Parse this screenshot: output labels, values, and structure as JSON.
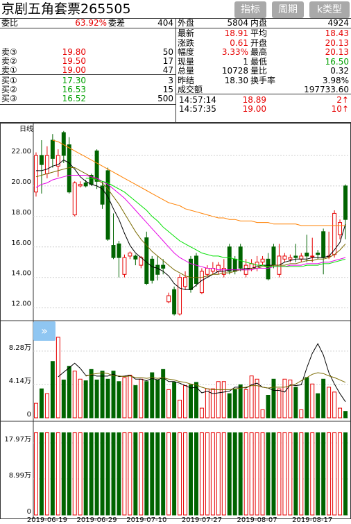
{
  "header": {
    "title": "京剧五角套票265505",
    "buttons": [
      "指标",
      "周期",
      "k类型"
    ]
  },
  "quote_left": {
    "weibi_label": "委比",
    "weibi_value": "63.92%",
    "weicha_label": "委差",
    "weicha_value": "404",
    "asks": [
      {
        "label": "卖③",
        "price": "19.80",
        "vol": "50"
      },
      {
        "label": "卖②",
        "price": "19.50",
        "vol": "17"
      },
      {
        "label": "卖①",
        "price": "19.00",
        "vol": "47"
      }
    ],
    "bids": [
      {
        "label": "买①",
        "price": "17.30",
        "vol": "3"
      },
      {
        "label": "买②",
        "price": "16.53",
        "vol": "15"
      },
      {
        "label": "买③",
        "price": "16.52",
        "vol": "500"
      }
    ]
  },
  "quote_right": {
    "waipan_label": "外盘",
    "waipan_value": "5804",
    "neipan_label": "内盘",
    "neipan_value": "4924",
    "rows": [
      {
        "l1": "最新",
        "v1": "18.91",
        "c1": "red",
        "l2": "平均",
        "v2": "18.43",
        "c2": "red"
      },
      {
        "l1": "涨跌",
        "v1": "0.61",
        "c1": "red",
        "l2": "开盘",
        "v2": "20.13",
        "c2": "red"
      },
      {
        "l1": "幅度",
        "v1": "3.33%",
        "c1": "red",
        "l2": "最高",
        "v2": "20.13",
        "c2": "red"
      },
      {
        "l1": "现量",
        "v1": "1",
        "c1": "black",
        "l2": "最低",
        "v2": "16.50",
        "c2": "grn"
      },
      {
        "l1": "总量",
        "v1": "10728",
        "c1": "black",
        "l2": "量比",
        "v2": "0.32",
        "c2": "black"
      },
      {
        "l1": "昨结",
        "v1": "18.30",
        "c1": "black",
        "l2": "换手率",
        "v2": "3.98%",
        "c2": "black"
      }
    ],
    "amount_label": "成交额",
    "amount_value": "197733.60",
    "ticks": [
      {
        "time": "14:57:14",
        "price": "18.89",
        "vol": "2↑"
      },
      {
        "time": "14:57:35",
        "price": "19.00",
        "vol": "10↑"
      }
    ]
  },
  "kline": {
    "period_label": "日线",
    "price_ticks": [
      "22.00",
      "20.00",
      "18.00",
      "16.00",
      "14.00",
      "12.00"
    ],
    "vol_ticks": [
      "8.28万",
      "4.14万",
      "0"
    ],
    "oi_ticks": [
      "17.97万",
      "8.99万",
      "0"
    ],
    "dates": [
      "2019-06-19",
      "2019-06-29",
      "2019-07-10",
      "2019-07-27",
      "2019-08-07",
      "2019-08-17"
    ],
    "colors": {
      "up": "#e60000",
      "down": "#006400",
      "ma5": "#000000",
      "ma10": "#7a6a00",
      "ma20": "#e600e6",
      "ma30": "#00e000",
      "ma60": "#ff8000"
    }
  },
  "chart_data": {
    "type": "candlestick",
    "price_ylim": [
      11.3,
      23.5
    ],
    "candles": [
      {
        "o": 19.6,
        "c": 22.0,
        "h": 22.2,
        "l": 19.3
      },
      {
        "o": 22.0,
        "c": 21.4,
        "h": 23.0,
        "l": 19.5
      },
      {
        "o": 20.8,
        "c": 22.0,
        "h": 22.6,
        "l": 20.5
      },
      {
        "o": 23.0,
        "c": 21.8,
        "h": 23.4,
        "l": 21.2
      },
      {
        "o": 21.3,
        "c": 22.0,
        "h": 22.4,
        "l": 20.6
      },
      {
        "o": 23.5,
        "c": 22.0,
        "h": 23.6,
        "l": 21.5
      },
      {
        "o": 22.7,
        "c": 19.6,
        "h": 23.2,
        "l": 19.5
      },
      {
        "o": 18.1,
        "c": 20.2,
        "h": 20.3,
        "l": 18.0
      },
      {
        "o": 20.0,
        "c": 20.1,
        "h": 20.3,
        "l": 19.9
      },
      {
        "o": 20.2,
        "c": 20.0,
        "h": 20.4,
        "l": 19.9
      },
      {
        "o": 20.7,
        "c": 20.1,
        "h": 20.8,
        "l": 20.0
      },
      {
        "o": 22.3,
        "c": 20.3,
        "h": 22.4,
        "l": 19.8
      },
      {
        "o": 20.0,
        "c": 18.8,
        "h": 20.3,
        "l": 18.5
      },
      {
        "o": 21.0,
        "c": 16.5,
        "h": 21.2,
        "l": 16.4
      },
      {
        "o": 16.1,
        "c": 15.3,
        "h": 18.2,
        "l": 15.2
      },
      {
        "o": 16.2,
        "c": 15.3,
        "h": 16.4,
        "l": 14.0
      },
      {
        "o": 14.2,
        "c": 15.3,
        "h": 15.5,
        "l": 14.0
      },
      {
        "o": 15.4,
        "c": 15.6,
        "h": 15.7,
        "l": 15.2
      },
      {
        "o": 15.4,
        "c": 15.2,
        "h": 15.5,
        "l": 14.8
      },
      {
        "o": 14.8,
        "c": 15.3,
        "h": 15.4,
        "l": 14.6
      },
      {
        "o": 16.6,
        "c": 13.6,
        "h": 17.0,
        "l": 13.5
      },
      {
        "o": 15.2,
        "c": 13.8,
        "h": 15.4,
        "l": 13.6
      },
      {
        "o": 14.8,
        "c": 14.2,
        "h": 15.4,
        "l": 13.8
      },
      {
        "o": 14.8,
        "c": 14.6,
        "h": 15.2,
        "l": 14.2
      },
      {
        "o": 12.4,
        "c": 12.8,
        "h": 13.0,
        "l": 12.3
      },
      {
        "o": 13.2,
        "c": 11.6,
        "h": 13.4,
        "l": 11.5
      },
      {
        "o": 11.6,
        "c": 14.0,
        "h": 14.2,
        "l": 11.5
      },
      {
        "o": 13.4,
        "c": 14.0,
        "h": 14.4,
        "l": 13.2
      },
      {
        "o": 15.2,
        "c": 13.2,
        "h": 15.4,
        "l": 13.0
      },
      {
        "o": 15.4,
        "c": 13.6,
        "h": 15.6,
        "l": 13.4
      },
      {
        "o": 13.0,
        "c": 14.4,
        "h": 14.6,
        "l": 12.9
      },
      {
        "o": 14.2,
        "c": 14.6,
        "h": 14.8,
        "l": 14.0
      },
      {
        "o": 14.4,
        "c": 14.6,
        "h": 15.0,
        "l": 14.2
      },
      {
        "o": 14.4,
        "c": 14.8,
        "h": 15.0,
        "l": 14.2
      },
      {
        "o": 14.2,
        "c": 14.6,
        "h": 15.2,
        "l": 14.0
      },
      {
        "o": 16.0,
        "c": 14.4,
        "h": 16.2,
        "l": 14.2
      },
      {
        "o": 15.2,
        "c": 14.4,
        "h": 15.4,
        "l": 14.2
      },
      {
        "o": 16.0,
        "c": 14.6,
        "h": 16.2,
        "l": 14.4
      },
      {
        "o": 14.2,
        "c": 14.8,
        "h": 15.2,
        "l": 14.0
      },
      {
        "o": 14.6,
        "c": 14.9,
        "h": 15.2,
        "l": 14.4
      },
      {
        "o": 14.6,
        "c": 15.0,
        "h": 15.4,
        "l": 14.4
      },
      {
        "o": 15.0,
        "c": 15.2,
        "h": 15.4,
        "l": 14.8
      },
      {
        "o": 15.2,
        "c": 13.9,
        "h": 15.6,
        "l": 13.8
      },
      {
        "o": 16.0,
        "c": 14.8,
        "h": 16.2,
        "l": 14.6
      },
      {
        "o": 14.2,
        "c": 15.4,
        "h": 16.2,
        "l": 14.0
      },
      {
        "o": 15.2,
        "c": 15.4,
        "h": 15.6,
        "l": 15.0
      },
      {
        "o": 15.2,
        "c": 15.3,
        "h": 15.5,
        "l": 15.0
      },
      {
        "o": 15.4,
        "c": 15.3,
        "h": 16.2,
        "l": 15.0
      },
      {
        "o": 15.2,
        "c": 15.4,
        "h": 15.6,
        "l": 15.0
      },
      {
        "o": 15.6,
        "c": 15.4,
        "h": 16.8,
        "l": 15.0
      },
      {
        "o": 15.4,
        "c": 15.4,
        "h": 16.6,
        "l": 15.0
      },
      {
        "o": 15.6,
        "c": 15.5,
        "h": 15.8,
        "l": 15.2
      },
      {
        "o": 17.0,
        "c": 15.3,
        "h": 17.2,
        "l": 14.2
      },
      {
        "o": 15.4,
        "c": 15.4,
        "h": 17.0,
        "l": 15.2
      },
      {
        "o": 15.5,
        "c": 18.2,
        "h": 18.4,
        "l": 15.3
      },
      {
        "o": 16.8,
        "c": 17.6,
        "h": 17.8,
        "l": 16.5
      },
      {
        "o": 20.0,
        "c": 17.8,
        "h": 20.1,
        "l": 16.5
      }
    ],
    "ma": [
      {
        "name": "ma5",
        "values": [
          21.0,
          21.0,
          21.1,
          21.3,
          21.4,
          21.7,
          21.5,
          21.1,
          20.6,
          20.3,
          20.1,
          20.0,
          19.8,
          19.3,
          18.5,
          17.8,
          16.9,
          16.1,
          15.6,
          15.3,
          15.0,
          14.7,
          14.6,
          14.4,
          14.1,
          13.6,
          13.3,
          13.2,
          13.2,
          13.5,
          13.8,
          14.0,
          14.2,
          14.4,
          14.4,
          14.5,
          14.5,
          14.5,
          14.6,
          14.6,
          14.7,
          14.8,
          14.8,
          14.8,
          14.8,
          15.0,
          15.1,
          15.2,
          15.2,
          15.2,
          15.3,
          15.3,
          15.3,
          15.4,
          15.8,
          16.3,
          17.5
        ]
      },
      {
        "name": "ma10",
        "values": [
          20.6,
          20.7,
          20.8,
          20.9,
          21.0,
          21.1,
          21.2,
          21.2,
          21.0,
          20.8,
          20.6,
          20.4,
          20.2,
          19.8,
          19.3,
          18.8,
          18.2,
          17.6,
          17.0,
          16.5,
          16.1,
          15.7,
          15.4,
          15.1,
          14.8,
          14.5,
          14.3,
          14.1,
          14.0,
          14.0,
          14.0,
          14.1,
          14.2,
          14.2,
          14.3,
          14.3,
          14.4,
          14.5,
          14.5,
          14.6,
          14.6,
          14.7,
          14.7,
          14.8,
          14.8,
          14.8,
          14.9,
          14.9,
          15.0,
          15.1,
          15.1,
          15.2,
          15.2,
          15.3,
          15.5,
          15.8,
          16.2
        ]
      },
      {
        "name": "ma20",
        "values": [
          19.9,
          20.1,
          20.2,
          20.4,
          20.5,
          20.6,
          20.7,
          20.7,
          20.7,
          20.7,
          20.6,
          20.5,
          20.3,
          20.1,
          19.8,
          19.5,
          19.2,
          18.8,
          18.4,
          18.0,
          17.6,
          17.2,
          16.8,
          16.4,
          16.0,
          15.6,
          15.3,
          15.1,
          14.9,
          14.8,
          14.7,
          14.6,
          14.6,
          14.5,
          14.5,
          14.5,
          14.5,
          14.5,
          14.5,
          14.5,
          14.6,
          14.6,
          14.6,
          14.7,
          14.7,
          14.7,
          14.8,
          14.8,
          14.8,
          14.9,
          14.9,
          14.9,
          15.0,
          15.0,
          15.1,
          15.2,
          15.3
        ]
      },
      {
        "name": "ma30",
        "values": [
          null,
          null,
          null,
          null,
          null,
          null,
          null,
          null,
          null,
          20.5,
          20.5,
          20.4,
          20.3,
          20.2,
          20.0,
          19.8,
          19.6,
          19.3,
          19.0,
          18.7,
          18.4,
          18.0,
          17.7,
          17.3,
          17.0,
          16.7,
          16.4,
          16.2,
          16.0,
          15.8,
          15.6,
          15.5,
          15.4,
          15.4,
          15.3,
          15.3,
          15.2,
          15.1,
          15.0,
          14.9,
          14.8,
          14.8,
          14.7,
          14.7,
          14.7,
          14.7,
          14.7,
          14.7,
          14.7,
          14.8,
          14.8,
          14.8,
          14.9,
          14.9,
          15.0,
          15.1,
          15.2
        ]
      },
      {
        "name": "ma60",
        "values": [
          null,
          null,
          null,
          23.0,
          22.9,
          22.7,
          22.5,
          22.3,
          22.1,
          21.9,
          21.7,
          21.5,
          21.3,
          21.1,
          20.9,
          20.7,
          20.5,
          20.3,
          20.1,
          19.9,
          19.7,
          19.5,
          19.3,
          19.1,
          18.9,
          18.8,
          18.7,
          18.5,
          18.4,
          18.3,
          18.2,
          18.1,
          18.0,
          17.9,
          17.9,
          17.8,
          17.8,
          17.7,
          17.7,
          17.7,
          17.6,
          17.6,
          17.6,
          17.5,
          17.5,
          17.5,
          17.5,
          17.5,
          17.4,
          17.4,
          17.4,
          17.4,
          17.4,
          17.4,
          17.4,
          17.4,
          17.4
        ]
      }
    ],
    "vol_ylim": [
      0,
      112000
    ],
    "volumes": [
      18000,
      36000,
      30000,
      70000,
      100000,
      47000,
      64000,
      58000,
      48000,
      46000,
      60000,
      47000,
      58000,
      48000,
      58000,
      45000,
      50000,
      53000,
      40000,
      48000,
      45000,
      56000,
      47000,
      60000,
      35000,
      44000,
      22000,
      40000,
      41000,
      44000,
      12000,
      36000,
      36000,
      45000,
      45000,
      30000,
      35000,
      41000,
      35000,
      52000,
      48000,
      10000,
      28000,
      48000,
      36000,
      48000,
      47000,
      38000,
      10000,
      50000,
      42000,
      30000,
      48000,
      38000,
      32000,
      12000,
      8000
    ],
    "vol_ma": [
      {
        "name": "vma5",
        "values": [
          null,
          null,
          null,
          null,
          50800,
          56600,
          62200,
          67800,
          61400,
          52600,
          53200,
          51800,
          51800,
          51800,
          54200,
          51200,
          51800,
          53000,
          48000,
          48000,
          46000,
          49000,
          47000,
          50000,
          45000,
          45000,
          43000,
          40000,
          37000,
          38000,
          31000,
          33000,
          30000,
          31000,
          32000,
          33000,
          38000,
          38000,
          37000,
          41000,
          43000,
          38000,
          37000,
          34000,
          34000,
          32000,
          41000,
          40000,
          41000,
          62000,
          80000,
          92000,
          78000,
          56000,
          42000,
          30000,
          20000
        ]
      },
      {
        "name": "vma10",
        "values": [
          null,
          null,
          null,
          null,
          null,
          null,
          null,
          null,
          null,
          51700,
          53900,
          55000,
          56000,
          55000,
          52000,
          52000,
          51000,
          52000,
          50000,
          50000,
          49000,
          50000,
          49000,
          50000,
          48000,
          47000,
          45000,
          44000,
          42000,
          41000,
          38000,
          36000,
          35000,
          35000,
          35000,
          35000,
          36000,
          37000,
          38000,
          40000,
          40000,
          38000,
          37000,
          38000,
          38000,
          38000,
          40000,
          42000,
          46000,
          50000,
          54000,
          56000,
          55000,
          52000,
          50000,
          47000,
          44000
        ]
      }
    ],
    "oi_ylim": [
      0,
      225000
    ],
    "open_interest": [
      205000,
      205000,
      205000,
      205000,
      205000,
      205000,
      205000,
      205000,
      205000,
      205000,
      205000,
      205000,
      205000,
      205000,
      205000,
      205000,
      205000,
      205000,
      205000,
      205000,
      205000,
      205000,
      205000,
      205000,
      205000,
      205000,
      205000,
      205000,
      205000,
      205000,
      205000,
      205000,
      205000,
      205000,
      205000,
      205000,
      205000,
      205000,
      205000,
      205000,
      205000,
      205000,
      205000,
      205000,
      205000,
      205000,
      205000,
      205000,
      205000,
      205000,
      205000,
      205000,
      205000,
      205000,
      205000,
      205000,
      205000
    ]
  }
}
